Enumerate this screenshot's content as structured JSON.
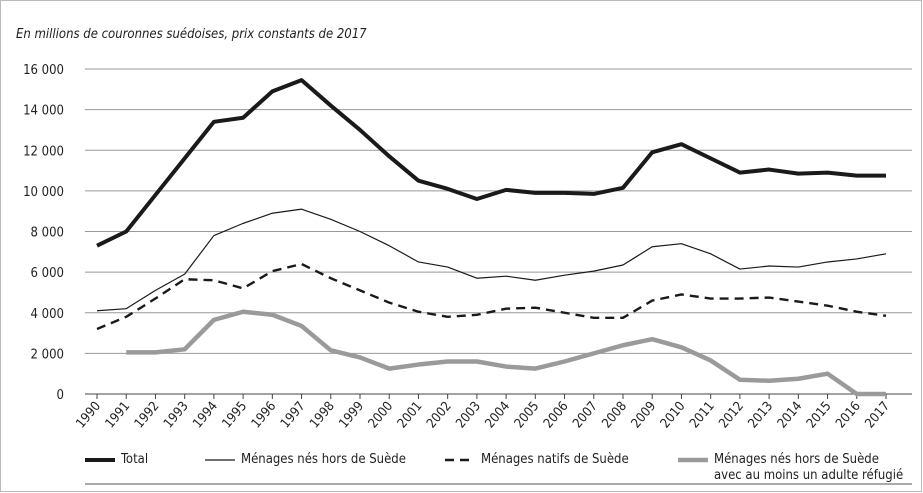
{
  "chart_data": {
    "type": "line",
    "title": "En millions de couronnes suédoises, prix constants de 2017",
    "categories": [
      "1990",
      "1991",
      "1992",
      "1993",
      "1994",
      "1995",
      "1996",
      "1997",
      "1998",
      "1999",
      "2000",
      "2001",
      "2002",
      "2003",
      "2004",
      "2005",
      "2006",
      "2007",
      "2008",
      "2009",
      "2010",
      "2011",
      "2012",
      "2013",
      "2014",
      "2015",
      "2016",
      "2017"
    ],
    "series": [
      {
        "name": "Total",
        "color": "#1a1a1a",
        "width": 4,
        "dash": "solid",
        "values": [
          7300,
          8000,
          9800,
          11600,
          13400,
          13600,
          14900,
          15450,
          14200,
          13000,
          11700,
          10500,
          10100,
          9600,
          10050,
          9900,
          9900,
          9850,
          10150,
          11900,
          12300,
          11600,
          10900,
          11050,
          10850,
          10900,
          10750,
          10750
        ]
      },
      {
        "name": "Ménages nés hors de Suède",
        "color": "#1a1a1a",
        "width": 1.2,
        "dash": "solid",
        "values": [
          4100,
          4200,
          5100,
          5900,
          7800,
          8400,
          8900,
          9100,
          8600,
          8000,
          7300,
          6500,
          6250,
          5700,
          5800,
          5600,
          5850,
          6050,
          6350,
          7250,
          7400,
          6900,
          6150,
          6300,
          6250,
          6500,
          6650,
          6900
        ]
      },
      {
        "name": "Ménages natifs de Suède",
        "color": "#1a1a1a",
        "width": 2.4,
        "dash": "dashed",
        "values": [
          3200,
          3800,
          4700,
          5650,
          5600,
          5200,
          6050,
          6400,
          5700,
          5100,
          4500,
          4050,
          3800,
          3900,
          4200,
          4250,
          4000,
          3750,
          3750,
          4600,
          4900,
          4700,
          4700,
          4750,
          4550,
          4350,
          4050,
          3850
        ]
      },
      {
        "name": "Ménages nés hors de Suède avec au moins un adulte réfugié",
        "color": "#9a9a9a",
        "width": 4.5,
        "dash": "solid",
        "values": [
          null,
          2050,
          2050,
          2200,
          3650,
          4050,
          3900,
          3350,
          2150,
          1800,
          1250,
          1450,
          1600,
          1600,
          1350,
          1250,
          1600,
          2000,
          2400,
          2700,
          2300,
          1650,
          700,
          650,
          750,
          1000,
          0,
          0
        ]
      }
    ],
    "ylim": [
      0,
      16000
    ],
    "yticks": [
      0,
      {
        "value": 2000,
        "label": "2 000"
      },
      {
        "value": 4000,
        "label": "4 000"
      },
      {
        "value": 6000,
        "label": "6 000"
      },
      {
        "value": 8000,
        "label": "8 000"
      },
      {
        "value": 10000,
        "label": "10 000"
      },
      {
        "value": 12000,
        "label": "12 000"
      },
      {
        "value": 14000,
        "label": "14 000"
      },
      {
        "value": 16000,
        "label": "16 000"
      }
    ],
    "grid": true
  }
}
